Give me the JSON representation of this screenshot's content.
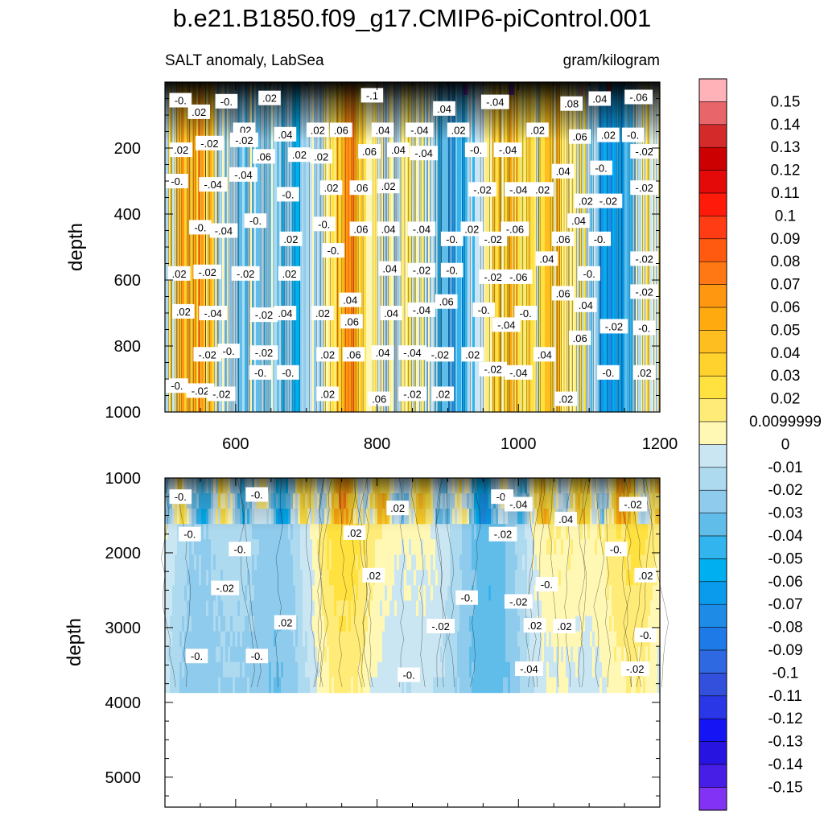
{
  "chart_data": {
    "type": "heatmap",
    "title": "b.e21.B1850.f09_g17.CMIP6-piControl.001",
    "variable": "SALT anomaly, LabSea",
    "units": "gram/kilogram",
    "x_axis": {
      "range": [
        500,
        1200
      ],
      "ticks": [
        "600",
        "800",
        "1000",
        "1200"
      ]
    },
    "panels": [
      {
        "name": "upper",
        "ylabel": "depth",
        "ylim": [
          1000,
          0
        ],
        "yticks": [
          "200",
          "400",
          "600",
          "800",
          "1000"
        ],
        "ytick_values": [
          200,
          400,
          600,
          800,
          1000
        ],
        "data_bottom_depth": 1000,
        "description_of_field": "strongly banded anomalies alternating positive and negative in time, largest near the surface"
      },
      {
        "name": "lower",
        "ylabel": "depth",
        "ylim": [
          5400,
          1000
        ],
        "yticks": [
          "1000",
          "2000",
          "3000",
          "4000",
          "5000"
        ],
        "ytick_values": [
          1000,
          2000,
          3000,
          4000,
          5000
        ],
        "data_bottom_depth": 3870
      }
    ],
    "colorbar": {
      "levels": [
        "0.15",
        "0.14",
        "0.13",
        "0.12",
        "0.11",
        "0.1",
        "0.09",
        "0.08",
        "0.07",
        "0.06",
        "0.05",
        "0.04",
        "0.03",
        "0.02",
        "0.0099999",
        "0",
        "-0.01",
        "-0.02",
        "-0.03",
        "-0.04",
        "-0.05",
        "-0.06",
        "-0.07",
        "-0.08",
        "-0.09",
        "-0.1",
        "-0.11",
        "-0.12",
        "-0.13",
        "-0.14",
        "-0.15"
      ],
      "colors": [
        "#FFB3B8",
        "#E8656A",
        "#D42A2A",
        "#CC0000",
        "#E50A0A",
        "#FF1A0A",
        "#FF3C14",
        "#FF5A0F",
        "#FF7814",
        "#FF9810",
        "#FFAB10",
        "#FFBE20",
        "#FFD22D",
        "#FFE140",
        "#FFEC78",
        "#FFF8B4",
        "#CBE6F3",
        "#AEDAF0",
        "#8FCBEC",
        "#60BDEA",
        "#32B4EE",
        "#00AFF0",
        "#0A9BEC",
        "#1E8CE6",
        "#1E7AE6",
        "#2E69E1",
        "#3250DC",
        "#2A37E6",
        "#1414F5",
        "#2814E1",
        "#461EE6",
        "#8232F5"
      ]
    },
    "contour_labels_upper": [
      {
        "t": 522,
        "d": 55,
        "text": "-0."
      },
      {
        "t": 548,
        "d": 90,
        "text": ".02"
      },
      {
        "t": 587,
        "d": 58,
        "text": "-0."
      },
      {
        "t": 648,
        "d": 48,
        "text": ".02"
      },
      {
        "t": 793,
        "d": 40,
        "text": "-.1"
      },
      {
        "t": 895,
        "d": 80,
        "text": ".04"
      },
      {
        "t": 967,
        "d": 60,
        "text": "-.04"
      },
      {
        "t": 1075,
        "d": 65,
        "text": ".08"
      },
      {
        "t": 1115,
        "d": 50,
        "text": ".04"
      },
      {
        "t": 1170,
        "d": 45,
        "text": "-.06"
      },
      {
        "t": 523,
        "d": 205,
        "text": ".02"
      },
      {
        "t": 563,
        "d": 185,
        "text": "-.02"
      },
      {
        "t": 612,
        "d": 145,
        "text": ".02"
      },
      {
        "t": 612,
        "d": 175,
        "text": "-.02"
      },
      {
        "t": 670,
        "d": 158,
        "text": ".04"
      },
      {
        "t": 716,
        "d": 145,
        "text": ".02"
      },
      {
        "t": 749,
        "d": 145,
        "text": ".06"
      },
      {
        "t": 808,
        "d": 145,
        "text": ".04"
      },
      {
        "t": 860,
        "d": 145,
        "text": "-.04"
      },
      {
        "t": 915,
        "d": 145,
        "text": ".02"
      },
      {
        "t": 1027,
        "d": 145,
        "text": ".02"
      },
      {
        "t": 1087,
        "d": 165,
        "text": ".06"
      },
      {
        "t": 1127,
        "d": 160,
        "text": ".02"
      },
      {
        "t": 1162,
        "d": 160,
        "text": "-0."
      },
      {
        "t": 640,
        "d": 225,
        "text": ".06"
      },
      {
        "t": 690,
        "d": 220,
        "text": ".02"
      },
      {
        "t": 721,
        "d": 225,
        "text": ".02"
      },
      {
        "t": 789,
        "d": 210,
        "text": ".06"
      },
      {
        "t": 830,
        "d": 205,
        "text": ".04"
      },
      {
        "t": 866,
        "d": 215,
        "text": "-.04"
      },
      {
        "t": 940,
        "d": 205,
        "text": "-0."
      },
      {
        "t": 985,
        "d": 205,
        "text": "-.04"
      },
      {
        "t": 1063,
        "d": 270,
        "text": ".04"
      },
      {
        "t": 1117,
        "d": 260,
        "text": "-0."
      },
      {
        "t": 1178,
        "d": 210,
        "text": "-.02"
      },
      {
        "t": 517,
        "d": 300,
        "text": "-0."
      },
      {
        "t": 568,
        "d": 310,
        "text": "-.04"
      },
      {
        "t": 611,
        "d": 280,
        "text": "-.04"
      },
      {
        "t": 674,
        "d": 340,
        "text": "-0."
      },
      {
        "t": 735,
        "d": 320,
        "text": ".02"
      },
      {
        "t": 777,
        "d": 320,
        "text": ".06"
      },
      {
        "t": 816,
        "d": 315,
        "text": ".02"
      },
      {
        "t": 949,
        "d": 325,
        "text": "-.02"
      },
      {
        "t": 1000,
        "d": 325,
        "text": "-.04"
      },
      {
        "t": 1034,
        "d": 325,
        "text": ".02"
      },
      {
        "t": 1095,
        "d": 360,
        "text": ".02"
      },
      {
        "t": 1127,
        "d": 360,
        "text": "-.02"
      },
      {
        "t": 1178,
        "d": 320,
        "text": "-.02"
      },
      {
        "t": 550,
        "d": 440,
        "text": "-0."
      },
      {
        "t": 583,
        "d": 450,
        "text": "-.04"
      },
      {
        "t": 628,
        "d": 420,
        "text": "-0."
      },
      {
        "t": 725,
        "d": 430,
        "text": "-0."
      },
      {
        "t": 777,
        "d": 445,
        "text": ".06"
      },
      {
        "t": 816,
        "d": 445,
        "text": ".04"
      },
      {
        "t": 863,
        "d": 445,
        "text": "-.04"
      },
      {
        "t": 906,
        "d": 475,
        "text": "-0."
      },
      {
        "t": 934,
        "d": 445,
        "text": ".02"
      },
      {
        "t": 995,
        "d": 445,
        "text": "-.06"
      },
      {
        "t": 1085,
        "d": 420,
        "text": ".04"
      },
      {
        "t": 1063,
        "d": 475,
        "text": ".06"
      },
      {
        "t": 1115,
        "d": 475,
        "text": "-0."
      },
      {
        "t": 678,
        "d": 475,
        "text": ".02"
      },
      {
        "t": 738,
        "d": 510,
        "text": "-0."
      },
      {
        "t": 818,
        "d": 565,
        "text": ".04"
      },
      {
        "t": 863,
        "d": 570,
        "text": "-.02"
      },
      {
        "t": 906,
        "d": 570,
        "text": "-0."
      },
      {
        "t": 964,
        "d": 475,
        "text": "-.02"
      },
      {
        "t": 964,
        "d": 590,
        "text": "-.02"
      },
      {
        "t": 1040,
        "d": 535,
        "text": ".04"
      },
      {
        "t": 1178,
        "d": 535,
        "text": "-.02"
      },
      {
        "t": 520,
        "d": 580,
        "text": ".02"
      },
      {
        "t": 560,
        "d": 575,
        "text": "-.02"
      },
      {
        "t": 614,
        "d": 580,
        "text": "-.02"
      },
      {
        "t": 676,
        "d": 580,
        "text": ".02"
      },
      {
        "t": 1000,
        "d": 590,
        "text": "-.06"
      },
      {
        "t": 1100,
        "d": 580,
        "text": "-0."
      },
      {
        "t": 1063,
        "d": 640,
        "text": ".06"
      },
      {
        "t": 1178,
        "d": 635,
        "text": "-.02"
      },
      {
        "t": 526,
        "d": 695,
        "text": ".02"
      },
      {
        "t": 568,
        "d": 700,
        "text": "-.04"
      },
      {
        "t": 640,
        "d": 705,
        "text": "-.02"
      },
      {
        "t": 670,
        "d": 700,
        "text": ".04"
      },
      {
        "t": 723,
        "d": 700,
        "text": ".02"
      },
      {
        "t": 762,
        "d": 660,
        "text": ".04"
      },
      {
        "t": 820,
        "d": 700,
        "text": ".04"
      },
      {
        "t": 863,
        "d": 690,
        "text": "-.04"
      },
      {
        "t": 898,
        "d": 665,
        "text": ".06"
      },
      {
        "t": 951,
        "d": 690,
        "text": "-0."
      },
      {
        "t": 983,
        "d": 735,
        "text": "-.04"
      },
      {
        "t": 1010,
        "d": 700,
        "text": "-0."
      },
      {
        "t": 1095,
        "d": 675,
        "text": ".04"
      },
      {
        "t": 1135,
        "d": 740,
        "text": "-.02"
      },
      {
        "t": 1178,
        "d": 745,
        "text": "-0."
      },
      {
        "t": 764,
        "d": 725,
        "text": ".06"
      },
      {
        "t": 1087,
        "d": 775,
        "text": ".06"
      },
      {
        "t": 560,
        "d": 825,
        "text": "-.02"
      },
      {
        "t": 590,
        "d": 815,
        "text": "-0."
      },
      {
        "t": 640,
        "d": 820,
        "text": "-.02"
      },
      {
        "t": 730,
        "d": 825,
        "text": ".02"
      },
      {
        "t": 767,
        "d": 825,
        "text": ".06"
      },
      {
        "t": 808,
        "d": 820,
        "text": ".04"
      },
      {
        "t": 850,
        "d": 820,
        "text": "-.04"
      },
      {
        "t": 889,
        "d": 825,
        "text": "-.02"
      },
      {
        "t": 935,
        "d": 825,
        "text": ".02"
      },
      {
        "t": 1037,
        "d": 825,
        "text": ".04"
      },
      {
        "t": 517,
        "d": 920,
        "text": "-0."
      },
      {
        "t": 550,
        "d": 935,
        "text": "-.02"
      },
      {
        "t": 580,
        "d": 945,
        "text": "-.02"
      },
      {
        "t": 635,
        "d": 880,
        "text": "-0."
      },
      {
        "t": 674,
        "d": 880,
        "text": "-0."
      },
      {
        "t": 730,
        "d": 945,
        "text": ".02"
      },
      {
        "t": 803,
        "d": 960,
        "text": ".06"
      },
      {
        "t": 850,
        "d": 945,
        "text": "-.02"
      },
      {
        "t": 893,
        "d": 945,
        "text": ".02"
      },
      {
        "t": 964,
        "d": 870,
        "text": "-.02"
      },
      {
        "t": 1000,
        "d": 880,
        "text": "-.04"
      },
      {
        "t": 1127,
        "d": 880,
        "text": "-0."
      },
      {
        "t": 1178,
        "d": 880,
        "text": ".02"
      },
      {
        "t": 1067,
        "d": 960,
        "text": ".02"
      }
    ],
    "contour_labels_lower": [
      {
        "t": 522,
        "d": 1250,
        "text": "-0."
      },
      {
        "t": 535,
        "d": 1750,
        "text": "-0."
      },
      {
        "t": 630,
        "d": 1220,
        "text": "-0."
      },
      {
        "t": 829,
        "d": 1400,
        "text": ".02"
      },
      {
        "t": 768,
        "d": 1730,
        "text": ".02"
      },
      {
        "t": 977,
        "d": 1250,
        "text": "-0."
      },
      {
        "t": 1000,
        "d": 1350,
        "text": "-.04"
      },
      {
        "t": 978,
        "d": 1750,
        "text": "-.02"
      },
      {
        "t": 1067,
        "d": 1550,
        "text": ".04"
      },
      {
        "t": 1162,
        "d": 1350,
        "text": "-.02"
      },
      {
        "t": 606,
        "d": 1950,
        "text": "-0."
      },
      {
        "t": 1138,
        "d": 1950,
        "text": "-0."
      },
      {
        "t": 1180,
        "d": 2300,
        "text": ".02"
      },
      {
        "t": 795,
        "d": 2300,
        "text": ".02"
      },
      {
        "t": 585,
        "d": 2470,
        "text": "-.02"
      },
      {
        "t": 1040,
        "d": 2420,
        "text": "-0."
      },
      {
        "t": 927,
        "d": 2600,
        "text": "-0."
      },
      {
        "t": 1000,
        "d": 2650,
        "text": "-.02"
      },
      {
        "t": 670,
        "d": 2930,
        "text": ".02"
      },
      {
        "t": 890,
        "d": 2980,
        "text": "-.02"
      },
      {
        "t": 1023,
        "d": 2970,
        "text": ".02"
      },
      {
        "t": 1065,
        "d": 2980,
        "text": ".02"
      },
      {
        "t": 1180,
        "d": 3100,
        "text": "-0."
      },
      {
        "t": 545,
        "d": 3380,
        "text": "-0."
      },
      {
        "t": 630,
        "d": 3380,
        "text": "-0."
      },
      {
        "t": 845,
        "d": 3630,
        "text": "-0."
      },
      {
        "t": 1015,
        "d": 3550,
        "text": "-.04"
      },
      {
        "t": 1165,
        "d": 3550,
        "text": "-.02"
      }
    ]
  }
}
